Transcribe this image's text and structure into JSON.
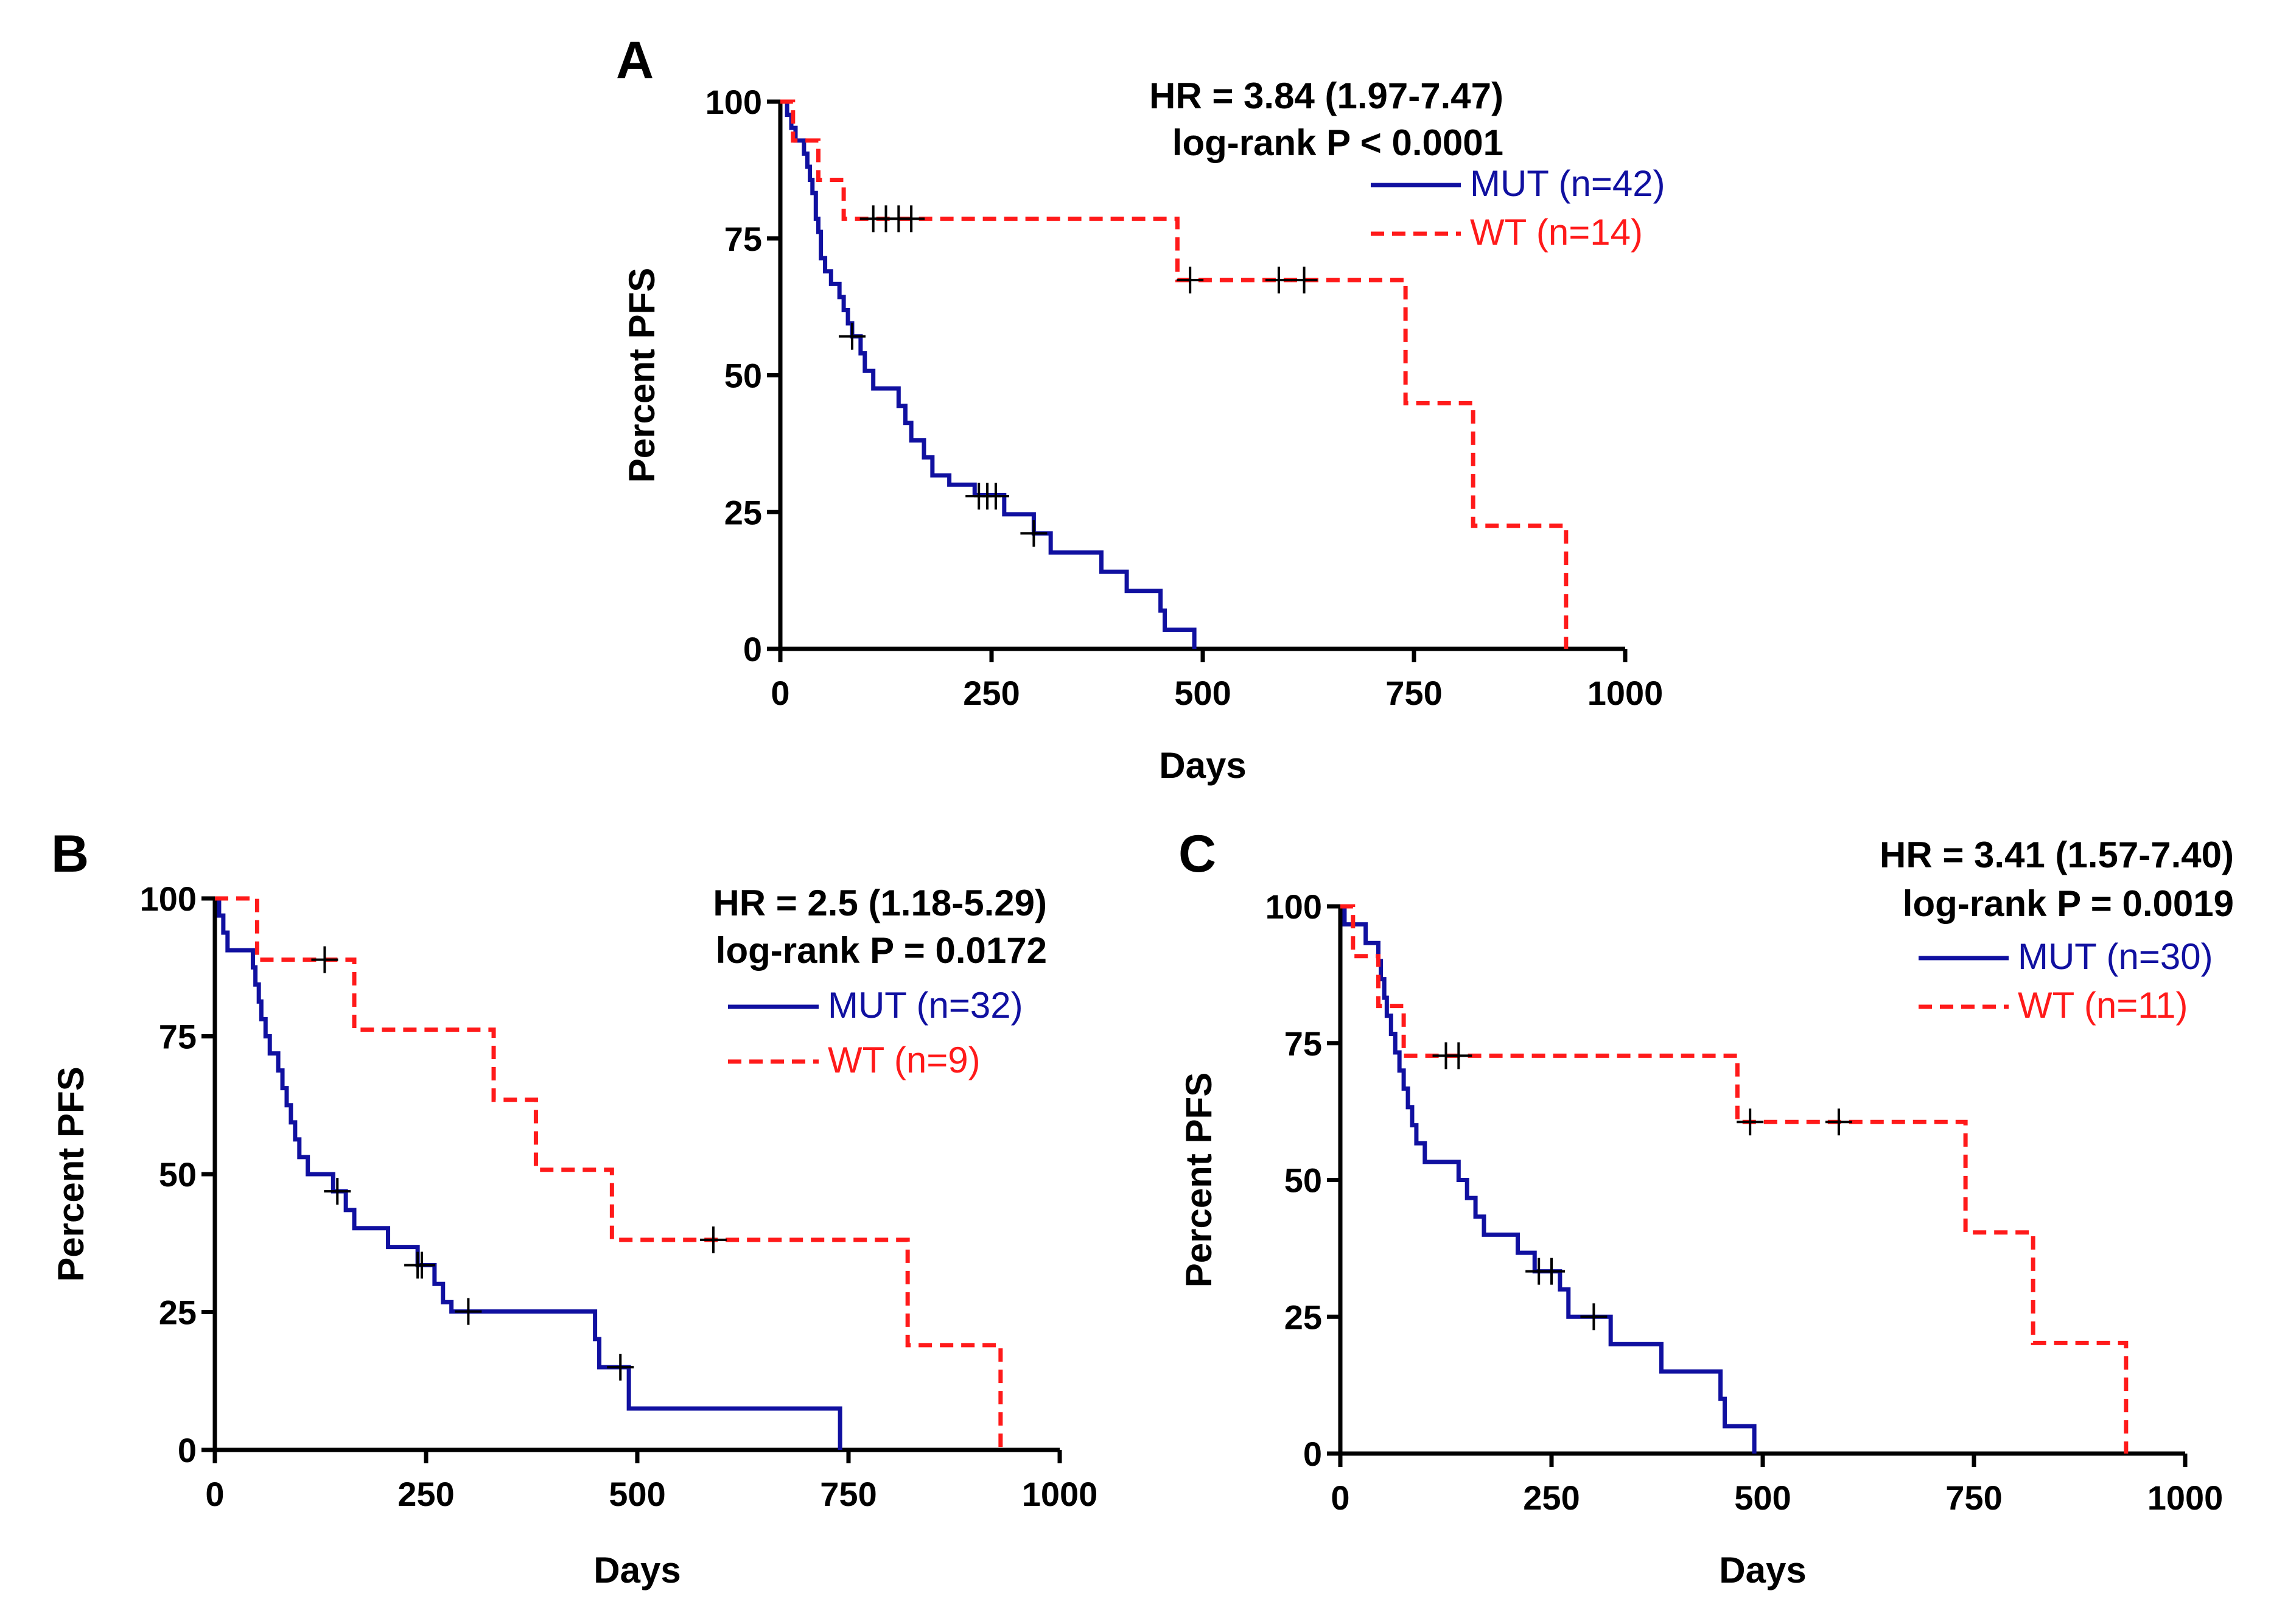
{
  "colors": {
    "mut": "#1010A0",
    "wt": "#FF1A1A",
    "axis": "#000000",
    "censor": "#000000"
  },
  "chart_data": [
    {
      "panel": "A",
      "type": "line",
      "subtype": "kaplan-meier",
      "xlabel": "Days",
      "ylabel": "Percent PFS",
      "xlim": [
        0,
        1000
      ],
      "ylim": [
        0,
        100
      ],
      "xticks": [
        0,
        250,
        500,
        750,
        1000
      ],
      "yticks": [
        0,
        25,
        50,
        75,
        100
      ],
      "stats": {
        "hr": "HR = 3.84 (1.97-7.47)",
        "p": "log-rank P < 0.0001"
      },
      "legend_position": "top-right",
      "series": [
        {
          "name": "MUT (n=42)",
          "key": "mut",
          "style": "solid",
          "steps": [
            [
              0,
              100
            ],
            [
              8,
              97.6
            ],
            [
              13,
              95.2
            ],
            [
              18,
              92.9
            ],
            [
              28,
              90.5
            ],
            [
              32,
              88.1
            ],
            [
              35,
              85.7
            ],
            [
              38,
              83.3
            ],
            [
              42,
              78.6
            ],
            [
              45,
              76.2
            ],
            [
              48,
              71.4
            ],
            [
              53,
              69
            ],
            [
              60,
              66.7
            ],
            [
              70,
              64.3
            ],
            [
              75,
              61.9
            ],
            [
              80,
              59.5
            ],
            [
              85,
              57.1
            ],
            [
              95,
              54
            ],
            [
              100,
              50.8
            ],
            [
              110,
              47.6
            ],
            [
              140,
              44.4
            ],
            [
              148,
              41.3
            ],
            [
              155,
              38.1
            ],
            [
              170,
              35
            ],
            [
              180,
              31.7
            ],
            [
              200,
              30
            ],
            [
              230,
              28.1
            ],
            [
              265,
              24.6
            ],
            [
              300,
              21.1
            ],
            [
              320,
              17.6
            ],
            [
              380,
              14.1
            ],
            [
              410,
              10.6
            ],
            [
              450,
              7
            ],
            [
              455,
              3.5
            ],
            [
              490,
              0
            ]
          ],
          "censors": [
            [
              85,
              57.1
            ],
            [
              235,
              27.9
            ],
            [
              245,
              27.9
            ],
            [
              255,
              27.9
            ],
            [
              300,
              21.1
            ]
          ]
        },
        {
          "name": "WT (n=14)",
          "key": "wt",
          "style": "dashed",
          "steps": [
            [
              0,
              100
            ],
            [
              15,
              92.9
            ],
            [
              45,
              85.7
            ],
            [
              75,
              78.6
            ],
            [
              470,
              67.4
            ],
            [
              740,
              44.9
            ],
            [
              820,
              22.5
            ],
            [
              930,
              0
            ]
          ],
          "censors": [
            [
              110,
              78.6
            ],
            [
              125,
              78.6
            ],
            [
              140,
              78.6
            ],
            [
              155,
              78.6
            ],
            [
              485,
              67.4
            ],
            [
              590,
              67.4
            ],
            [
              620,
              67.4
            ]
          ]
        }
      ]
    },
    {
      "panel": "B",
      "type": "line",
      "subtype": "kaplan-meier",
      "xlabel": "Days",
      "ylabel": "Percent PFS",
      "xlim": [
        0,
        1000
      ],
      "ylim": [
        0,
        100
      ],
      "xticks": [
        0,
        250,
        500,
        750,
        1000
      ],
      "yticks": [
        0,
        25,
        50,
        75,
        100
      ],
      "stats": {
        "hr": "HR = 2.5 (1.18-5.29)",
        "p": "log-rank P = 0.0172"
      },
      "legend_position": "top-right",
      "series": [
        {
          "name": "MUT (n=32)",
          "key": "mut",
          "style": "solid",
          "steps": [
            [
              0,
              100
            ],
            [
              5,
              96.9
            ],
            [
              10,
              93.8
            ],
            [
              15,
              90.6
            ],
            [
              45,
              87.5
            ],
            [
              48,
              84.4
            ],
            [
              52,
              81.3
            ],
            [
              55,
              78.1
            ],
            [
              60,
              75
            ],
            [
              65,
              71.9
            ],
            [
              75,
              68.8
            ],
            [
              80,
              65.6
            ],
            [
              85,
              62.5
            ],
            [
              90,
              59.4
            ],
            [
              95,
              56.3
            ],
            [
              100,
              53.1
            ],
            [
              110,
              50
            ],
            [
              140,
              46.9
            ],
            [
              155,
              43.5
            ],
            [
              165,
              40.2
            ],
            [
              205,
              36.8
            ],
            [
              240,
              33.5
            ],
            [
              260,
              30.1
            ],
            [
              270,
              26.8
            ],
            [
              280,
              25.1
            ],
            [
              450,
              20.1
            ],
            [
              455,
              15
            ],
            [
              490,
              7.5
            ],
            [
              740,
              0
            ]
          ],
          "censors": [
            [
              145,
              46.9
            ],
            [
              240,
              33.5
            ],
            [
              245,
              33.5
            ],
            [
              300,
              25.1
            ],
            [
              480,
              15
            ]
          ]
        },
        {
          "name": "WT (n=9)",
          "key": "wt",
          "style": "dashed",
          "steps": [
            [
              0,
              100
            ],
            [
              50,
              88.9
            ],
            [
              165,
              76.2
            ],
            [
              330,
              63.5
            ],
            [
              380,
              50.8
            ],
            [
              470,
              38.1
            ],
            [
              820,
              19
            ],
            [
              930,
              0
            ]
          ],
          "censors": [
            [
              130,
              88.9
            ],
            [
              590,
              38.1
            ]
          ]
        }
      ]
    },
    {
      "panel": "C",
      "type": "line",
      "subtype": "kaplan-meier",
      "xlabel": "Days",
      "ylabel": "Percent PFS",
      "xlim": [
        0,
        1000
      ],
      "ylim": [
        0,
        100
      ],
      "xticks": [
        0,
        250,
        500,
        750,
        1000
      ],
      "yticks": [
        0,
        25,
        50,
        75,
        100
      ],
      "stats": {
        "hr": "HR = 3.41 (1.57-7.40)",
        "p": "log-rank P = 0.0019"
      },
      "legend_position": "top-right",
      "series": [
        {
          "name": "MUT (n=30)",
          "key": "mut",
          "style": "solid",
          "steps": [
            [
              0,
              100
            ],
            [
              5,
              96.7
            ],
            [
              30,
              93.3
            ],
            [
              45,
              90
            ],
            [
              48,
              86.7
            ],
            [
              52,
              83.3
            ],
            [
              55,
              80
            ],
            [
              60,
              76.7
            ],
            [
              65,
              73.3
            ],
            [
              70,
              70
            ],
            [
              75,
              66.7
            ],
            [
              80,
              63.3
            ],
            [
              85,
              60
            ],
            [
              90,
              56.7
            ],
            [
              100,
              53.3
            ],
            [
              140,
              50
            ],
            [
              150,
              46.7
            ],
            [
              160,
              43.3
            ],
            [
              170,
              40
            ],
            [
              210,
              36.7
            ],
            [
              230,
              33.3
            ],
            [
              260,
              30
            ],
            [
              270,
              25
            ],
            [
              320,
              20
            ],
            [
              380,
              15
            ],
            [
              450,
              10
            ],
            [
              455,
              5
            ],
            [
              490,
              0
            ]
          ],
          "censors": [
            [
              235,
              33.3
            ],
            [
              250,
              33.3
            ],
            [
              300,
              25
            ]
          ]
        },
        {
          "name": "WT (n=11)",
          "key": "wt",
          "style": "dashed",
          "steps": [
            [
              0,
              100
            ],
            [
              15,
              90.9
            ],
            [
              45,
              81.8
            ],
            [
              75,
              72.7
            ],
            [
              470,
              60.6
            ],
            [
              740,
              40.4
            ],
            [
              820,
              20.2
            ],
            [
              930,
              0
            ]
          ],
          "censors": [
            [
              125,
              72.7
            ],
            [
              140,
              72.7
            ],
            [
              485,
              60.6
            ],
            [
              590,
              60.6
            ]
          ]
        }
      ]
    }
  ]
}
